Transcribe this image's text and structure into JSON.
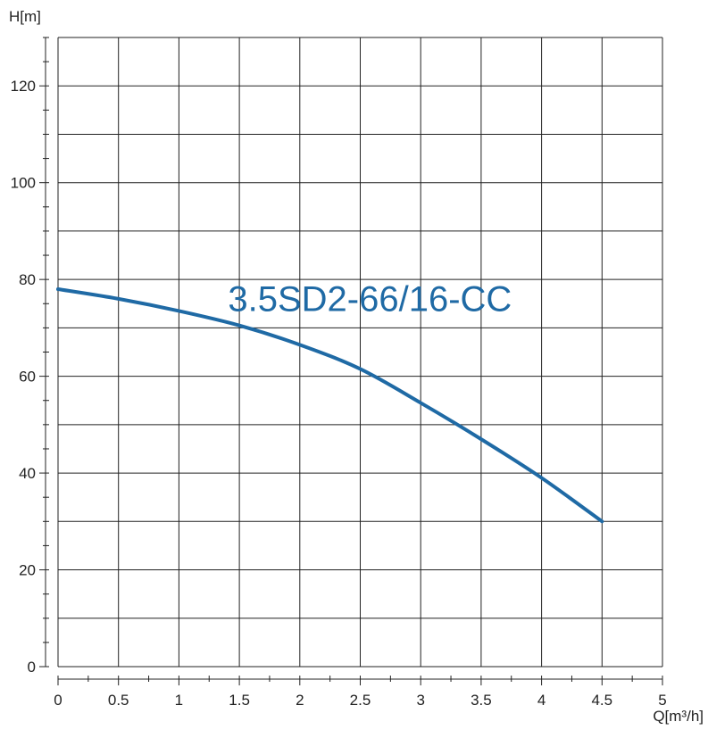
{
  "chart_data": {
    "type": "line",
    "title": "",
    "xlabel": "Q[m³/h]",
    "ylabel": "H[m]",
    "xlim": [
      0,
      5
    ],
    "ylim": [
      0,
      130
    ],
    "xticks": [
      "0",
      "0.5",
      "1",
      "1.5",
      "2",
      "2.5",
      "3",
      "3.5",
      "4",
      "4.5",
      "5"
    ],
    "xtick_values": [
      0,
      0.5,
      1,
      1.5,
      2,
      2.5,
      3,
      3.5,
      4,
      4.5,
      5
    ],
    "yticks": [
      "0",
      "20",
      "40",
      "60",
      "80",
      "100",
      "120"
    ],
    "ytick_values": [
      0,
      20,
      40,
      60,
      80,
      100,
      120
    ],
    "grid": true,
    "series": [
      {
        "name": "3.5SD2-66/16-CC",
        "color": "#1f6aa5",
        "x": [
          0,
          0.5,
          1,
          1.5,
          2,
          2.5,
          3,
          3.5,
          4,
          4.5
        ],
        "y": [
          78,
          76,
          73.5,
          70.5,
          66.5,
          61.5,
          54.5,
          47,
          39,
          30
        ]
      }
    ],
    "annotations": [
      {
        "text": "3.5SD2-66/16-CC",
        "x": 2.58,
        "y": 73.5
      }
    ]
  }
}
